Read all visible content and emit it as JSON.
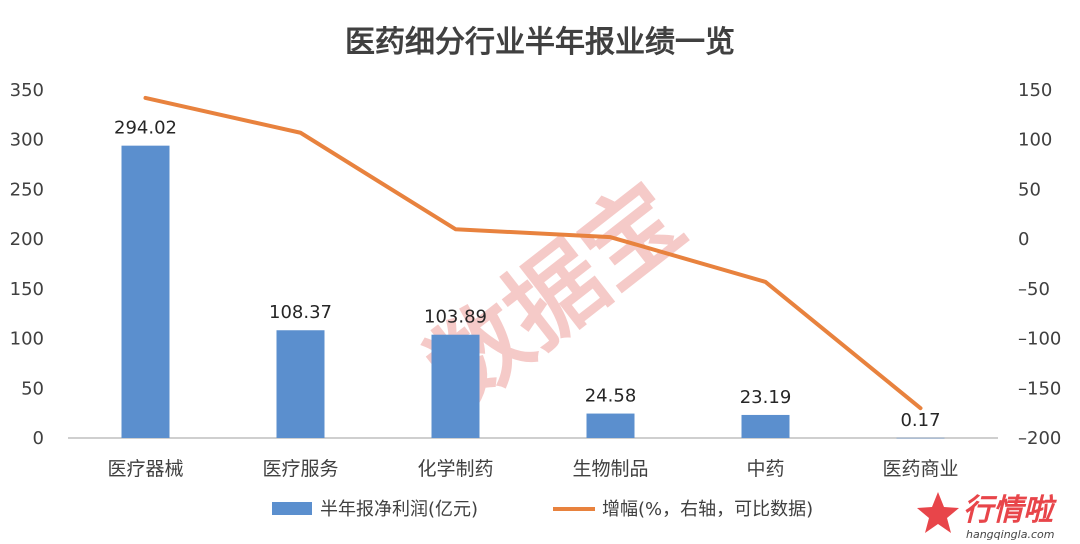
{
  "chart_data": {
    "type": "bar",
    "title": "医药细分行业半年报业绩一览",
    "categories": [
      "医疗器械",
      "医疗服务",
      "化学制药",
      "生物制品",
      "中药",
      "医药商业"
    ],
    "series": [
      {
        "name": "半年报净利润(亿元)",
        "type": "bar",
        "axis": "left",
        "values": [
          294.02,
          108.37,
          103.89,
          24.58,
          23.19,
          0.17
        ],
        "labels": [
          "294.02",
          "108.37",
          "103.89",
          "24.58",
          "23.19",
          "0.17"
        ]
      },
      {
        "name": "增幅(%，右轴，可比数据)",
        "type": "line",
        "axis": "right",
        "values": [
          142,
          107,
          10,
          2,
          -43,
          -170
        ]
      }
    ],
    "y_left": {
      "min": 0,
      "max": 350,
      "ticks": [
        "0",
        "50",
        "100",
        "150",
        "200",
        "250",
        "300",
        "350"
      ]
    },
    "y_right": {
      "min": -200,
      "max": 150,
      "ticks": [
        "-200",
        "-150",
        "-100",
        "-50",
        "0",
        "50",
        "100",
        "150"
      ]
    },
    "grid": false,
    "legend": "bottom"
  },
  "colors": {
    "bar": "#5b8fce",
    "line": "#e8823e",
    "watermark": "#f2b8b5",
    "logo": "#e8454a"
  },
  "watermark": {
    "text": "数据宝"
  },
  "logo": {
    "name": "行情啦",
    "url": "hangqingla.com",
    "icon": "star-icon"
  }
}
